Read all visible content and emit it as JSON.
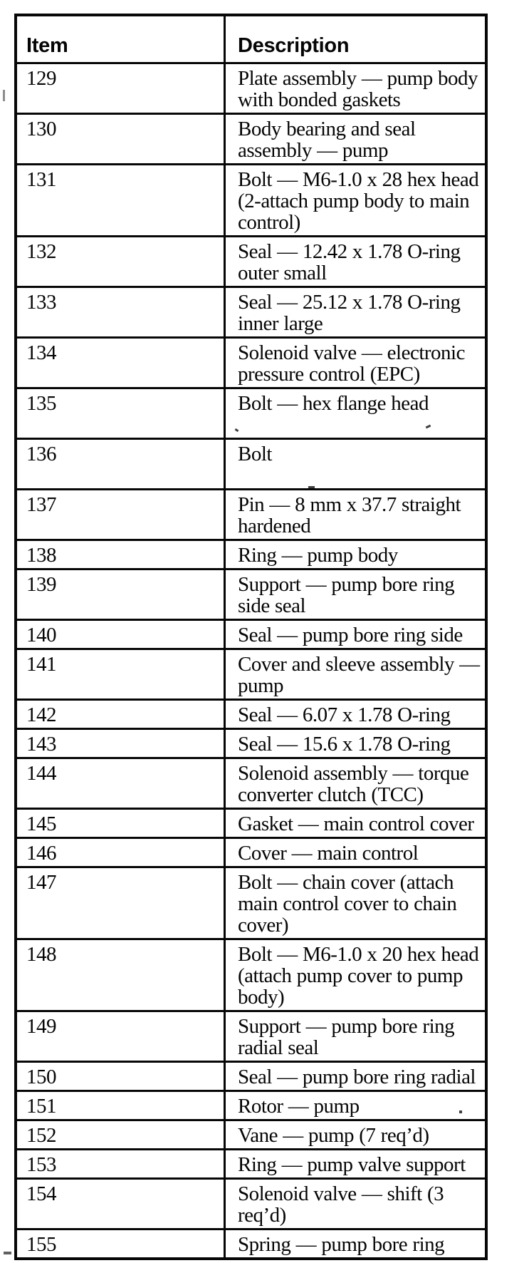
{
  "table": {
    "columns": [
      {
        "key": "item",
        "label": "Item"
      },
      {
        "key": "description",
        "label": "Description"
      }
    ],
    "rows": [
      {
        "item": "129",
        "description": "Plate assembly — pump body with bonded gaskets"
      },
      {
        "item": "130",
        "description": "Body bearing and seal assembly — pump"
      },
      {
        "item": "131",
        "description": "Bolt — M6-1.0 x 28 hex head (2-attach pump body to main control)"
      },
      {
        "item": "132",
        "description": "Seal — 12.42 x 1.78 O-ring outer small"
      },
      {
        "item": "133",
        "description": "Seal — 25.12 x 1.78 O-ring inner large"
      },
      {
        "item": "134",
        "description": "Solenoid valve — electronic pressure control (EPC)"
      },
      {
        "item": "135",
        "description": "Bolt — hex flange head"
      },
      {
        "item": "136",
        "description": "Bolt"
      },
      {
        "item": "137",
        "description": "Pin — 8 mm x 37.7 straight hardened"
      },
      {
        "item": "138",
        "description": "Ring — pump body"
      },
      {
        "item": "139",
        "description": "Support — pump bore ring side seal"
      },
      {
        "item": "140",
        "description": "Seal — pump bore ring side"
      },
      {
        "item": "141",
        "description": "Cover and sleeve assembly — pump"
      },
      {
        "item": "142",
        "description": "Seal — 6.07 x 1.78 O-ring"
      },
      {
        "item": "143",
        "description": "Seal — 15.6 x 1.78 O-ring"
      },
      {
        "item": "144",
        "description": "Solenoid assembly — torque converter clutch (TCC)"
      },
      {
        "item": "145",
        "description": "Gasket — main control cover"
      },
      {
        "item": "146",
        "description": "Cover — main control"
      },
      {
        "item": "147",
        "description": "Bolt — chain cover (attach main control cover to chain cover)"
      },
      {
        "item": "148",
        "description": "Bolt — M6-1.0 x 20 hex head (attach pump cover to pump body)"
      },
      {
        "item": "149",
        "description": "Support — pump bore ring radial seal"
      },
      {
        "item": "150",
        "description": "Seal — pump bore ring radial"
      },
      {
        "item": "151",
        "description": "Rotor — pump"
      },
      {
        "item": "152",
        "description": "Vane — pump (7 req’d)"
      },
      {
        "item": "153",
        "description": "Ring — pump valve support"
      },
      {
        "item": "154",
        "description": "Solenoid valve — shift (3 req’d)"
      },
      {
        "item": "155",
        "description": "Spring — pump bore ring"
      }
    ]
  }
}
